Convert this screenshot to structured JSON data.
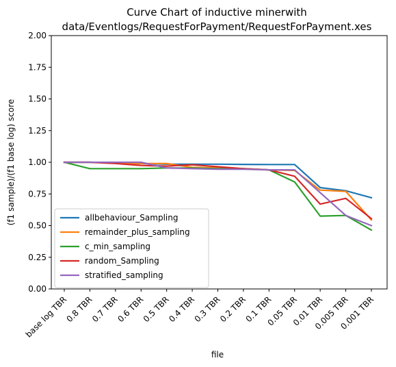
{
  "chart_data": {
    "type": "line",
    "title_line1": "Curve Chart of inductive minerwith",
    "title_line2": "data/Eventlogs/RequestForPayment/RequestForPayment.xes",
    "xlabel": "file",
    "ylabel": "(f1 sample)/(f1 base log) score",
    "ylim": [
      0,
      2
    ],
    "yticks": [
      "0.00",
      "0.25",
      "0.50",
      "0.75",
      "1.00",
      "1.25",
      "1.50",
      "1.75",
      "2.00"
    ],
    "categories": [
      "base log TBR",
      "0.8 TBR",
      "0.7 TBR",
      "0.6 TBR",
      "0.5 TBR",
      "0.4 TBR",
      "0.3 TBR",
      "0.2 TBR",
      "0.1 TBR",
      "0.05 TBR",
      "0.01 TBR",
      "0.005 TBR",
      "0.001 TBR"
    ],
    "legend_position": "lower-left",
    "series": [
      {
        "name": "allbehaviour_Sampling",
        "color": "#1f77b4",
        "values": [
          1.0,
          1.0,
          0.995,
          0.99,
          0.985,
          0.985,
          0.985,
          0.983,
          0.982,
          0.982,
          0.8,
          0.775,
          0.72
        ]
      },
      {
        "name": "remainder_plus_sampling",
        "color": "#ff7f0e",
        "values": [
          1.0,
          1.0,
          0.995,
          0.99,
          0.99,
          0.96,
          0.955,
          0.95,
          0.94,
          0.935,
          0.78,
          0.77,
          0.545
        ]
      },
      {
        "name": "c_min_sampling",
        "color": "#2ca02c",
        "values": [
          1.0,
          0.95,
          0.95,
          0.95,
          0.955,
          0.955,
          0.95,
          0.95,
          0.94,
          0.845,
          0.575,
          0.58,
          0.465
        ]
      },
      {
        "name": "random_Sampling",
        "color": "#d62728",
        "values": [
          1.0,
          1.0,
          0.99,
          0.975,
          0.97,
          0.98,
          0.965,
          0.95,
          0.94,
          0.89,
          0.67,
          0.715,
          0.555
        ]
      },
      {
        "name": "stratified_sampling",
        "color": "#9467bd",
        "values": [
          1.0,
          1.0,
          1.0,
          1.0,
          0.955,
          0.95,
          0.945,
          0.945,
          0.94,
          0.94,
          0.76,
          0.58,
          0.5
        ]
      }
    ]
  }
}
